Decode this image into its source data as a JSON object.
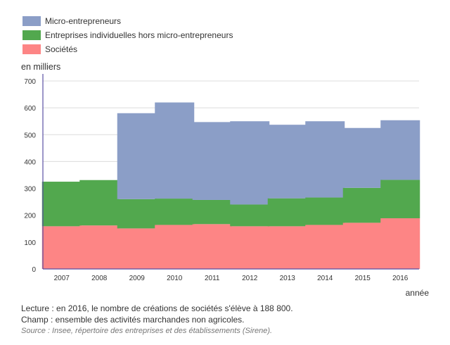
{
  "legend": {
    "items": [
      {
        "label": "Micro-entrepreneurs",
        "color": "#8b9ec7"
      },
      {
        "label": "Entreprises individuelles hors micro-entrepreneurs",
        "color": "#52a84e"
      },
      {
        "label": "Sociétés",
        "color": "#fd8585"
      }
    ]
  },
  "notes": {
    "lecture": "Lecture : en 2016, le nombre de créations de sociétés s'élève à 188 800.",
    "champ": "Champ : ensemble des activités marchandes non agricoles.",
    "source": "Source : Insee, répertoire des entreprises et des établissements (Sirene)."
  },
  "chart_data": {
    "type": "bar",
    "stacked": true,
    "title": "",
    "xlabel": "année",
    "ylabel": "en milliers",
    "ylim": [
      0,
      700
    ],
    "yticks": [
      0,
      100,
      200,
      300,
      400,
      500,
      600,
      700
    ],
    "categories": [
      "2007",
      "2008",
      "2009",
      "2010",
      "2011",
      "2012",
      "2013",
      "2014",
      "2015",
      "2016"
    ],
    "series": [
      {
        "name": "Sociétés",
        "color": "#fd8585",
        "values": [
          159,
          162,
          151,
          164,
          167,
          159,
          159,
          164,
          172,
          188.8
        ]
      },
      {
        "name": "Entreprises individuelles hors micro-entrepreneurs",
        "color": "#52a84e",
        "values": [
          166,
          169,
          109,
          98,
          90,
          81,
          104,
          102,
          130,
          143
        ]
      },
      {
        "name": "Micro-entrepreneurs",
        "color": "#8b9ec7",
        "values": [
          0,
          0,
          320,
          358,
          290,
          310,
          274,
          284,
          223,
          222
        ]
      }
    ],
    "grid": true,
    "axis_color": "#5a4fa3"
  }
}
